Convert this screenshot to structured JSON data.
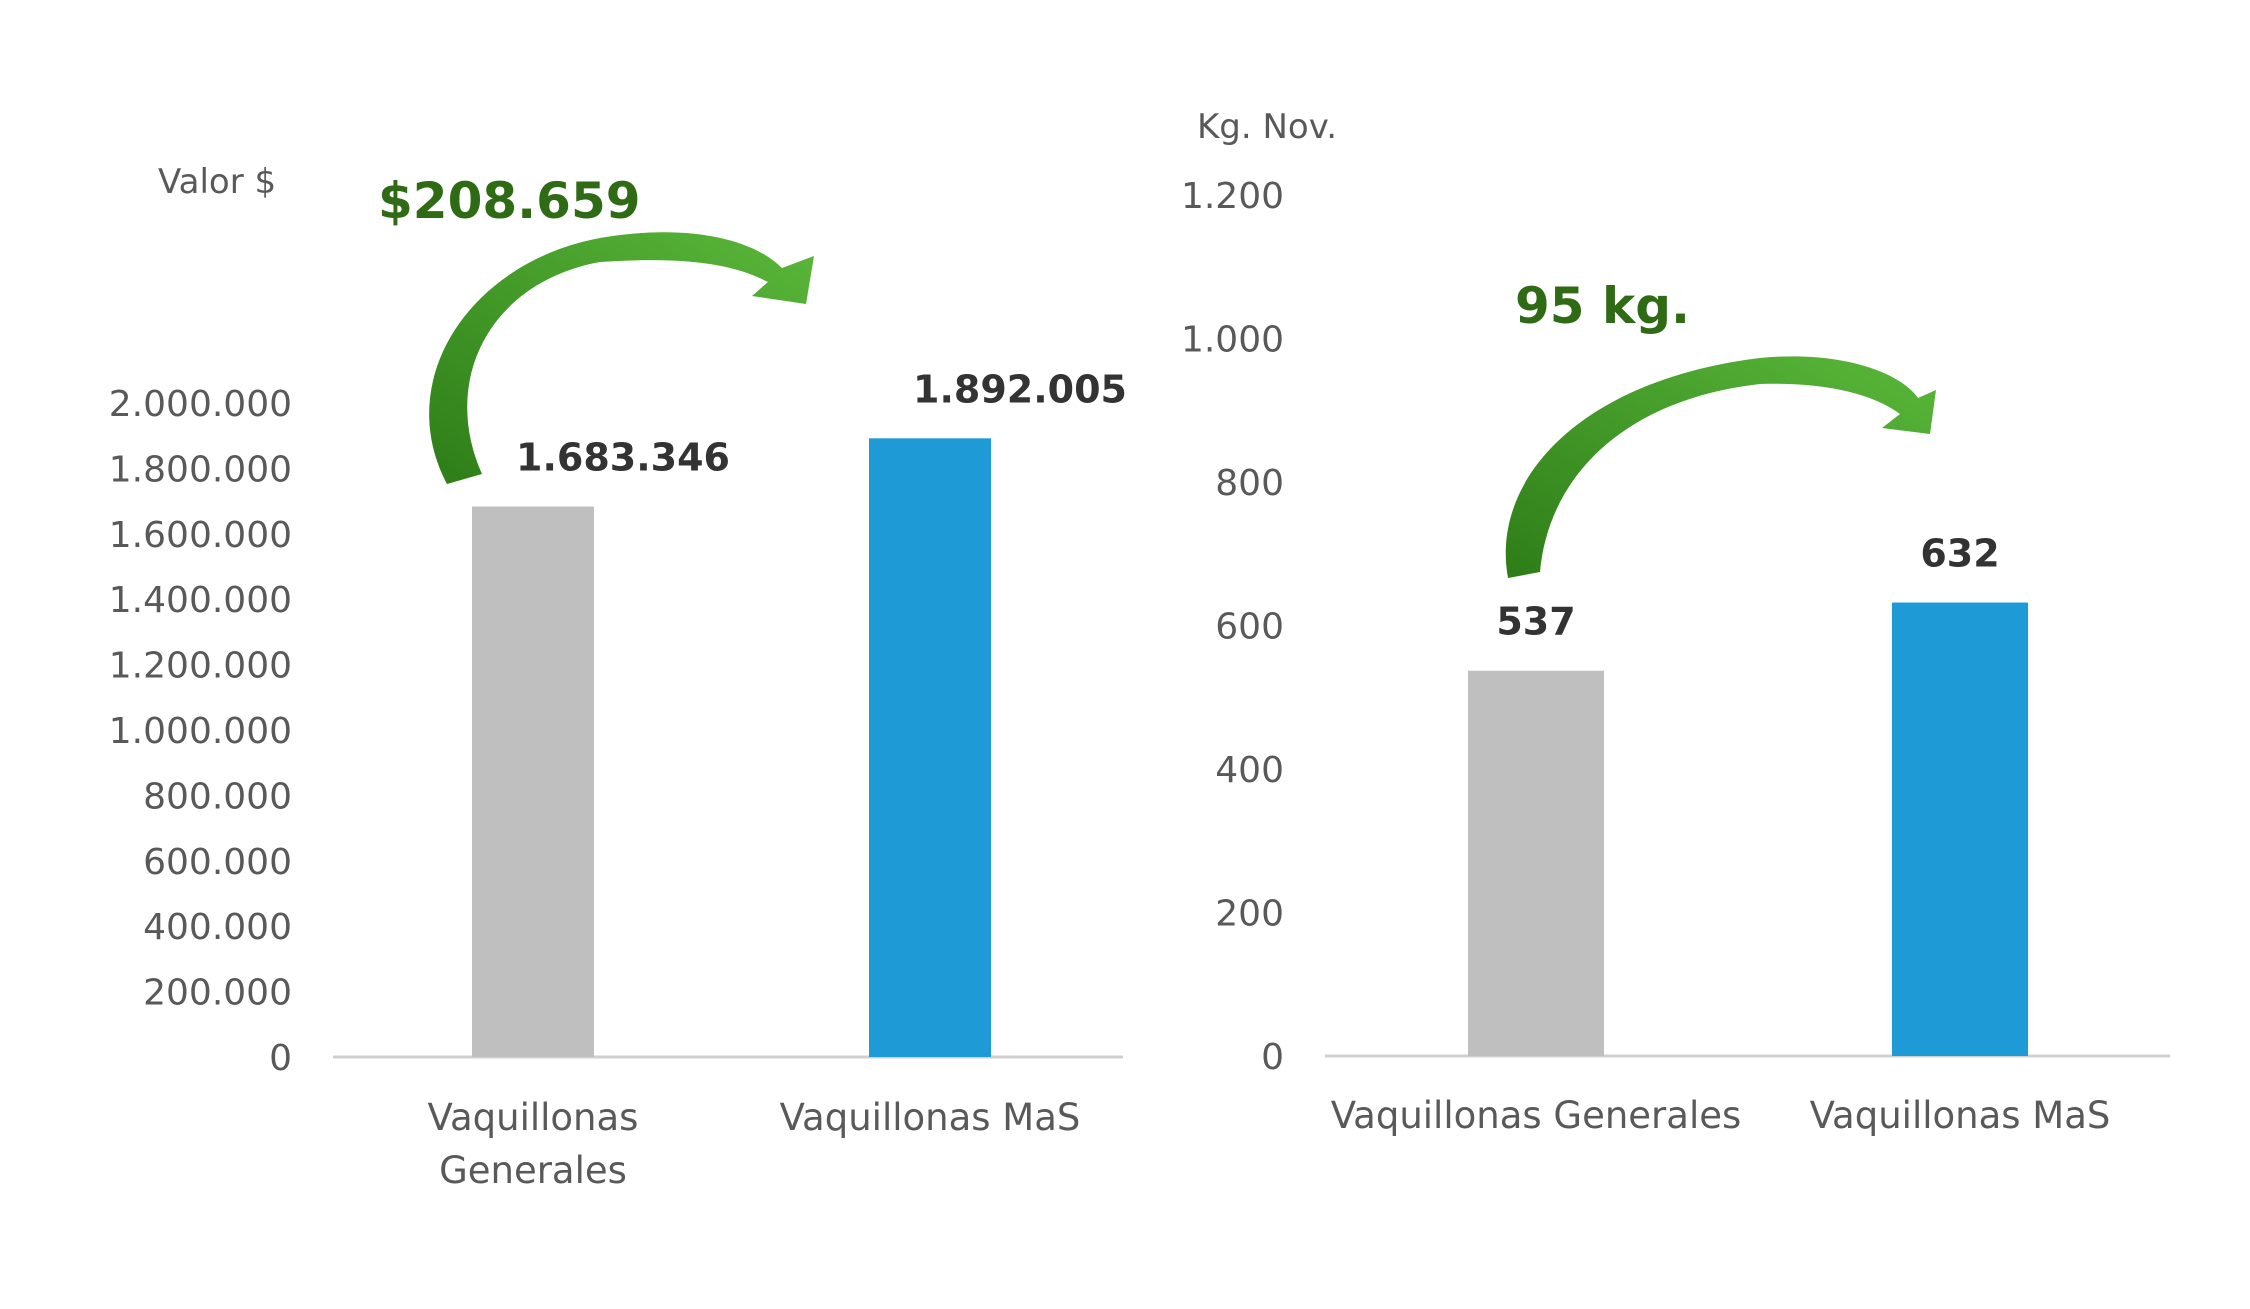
{
  "colors": {
    "bar_general": "#BFBFBF",
    "bar_mas": "#1E9BD7",
    "axis_line": "#D0D0D0",
    "callout_text": "#2E6B14",
    "arrow_dark": "#2E7D18",
    "arrow_light": "#5AB83A"
  },
  "chart_data": [
    {
      "type": "bar",
      "ylabel": "Valor $",
      "categories": [
        [
          "Vaquillonas",
          "Generales"
        ],
        [
          "Vaquillonas MaS"
        ]
      ],
      "values": [
        1683346,
        1892005
      ],
      "value_labels": [
        "1.683.346",
        "1.892.005"
      ],
      "ylim": [
        0,
        2000000
      ],
      "yticks": [
        0,
        200000,
        400000,
        600000,
        800000,
        1000000,
        1200000,
        1400000,
        1600000,
        1800000,
        2000000
      ],
      "ytick_labels": [
        "0",
        "200.000",
        "400.000",
        "600.000",
        "800.000",
        "1.000.000",
        "1.200.000",
        "1.400.000",
        "1.600.000",
        "1.800.000",
        "2.000.000"
      ],
      "grid": false,
      "annotation": "$208.659"
    },
    {
      "type": "bar",
      "ylabel": "Kg. Nov.",
      "categories": [
        [
          "Vaquillonas Generales"
        ],
        [
          "Vaquillonas MaS"
        ]
      ],
      "values": [
        537,
        632
      ],
      "value_labels": [
        "537",
        "632"
      ],
      "ylim": [
        0,
        1200
      ],
      "yticks": [
        0,
        200,
        400,
        600,
        800,
        1000,
        1200
      ],
      "ytick_labels": [
        "0",
        "200",
        "400",
        "600",
        "800",
        "1.000",
        "1.200"
      ],
      "grid": false,
      "annotation": "95 kg."
    }
  ]
}
